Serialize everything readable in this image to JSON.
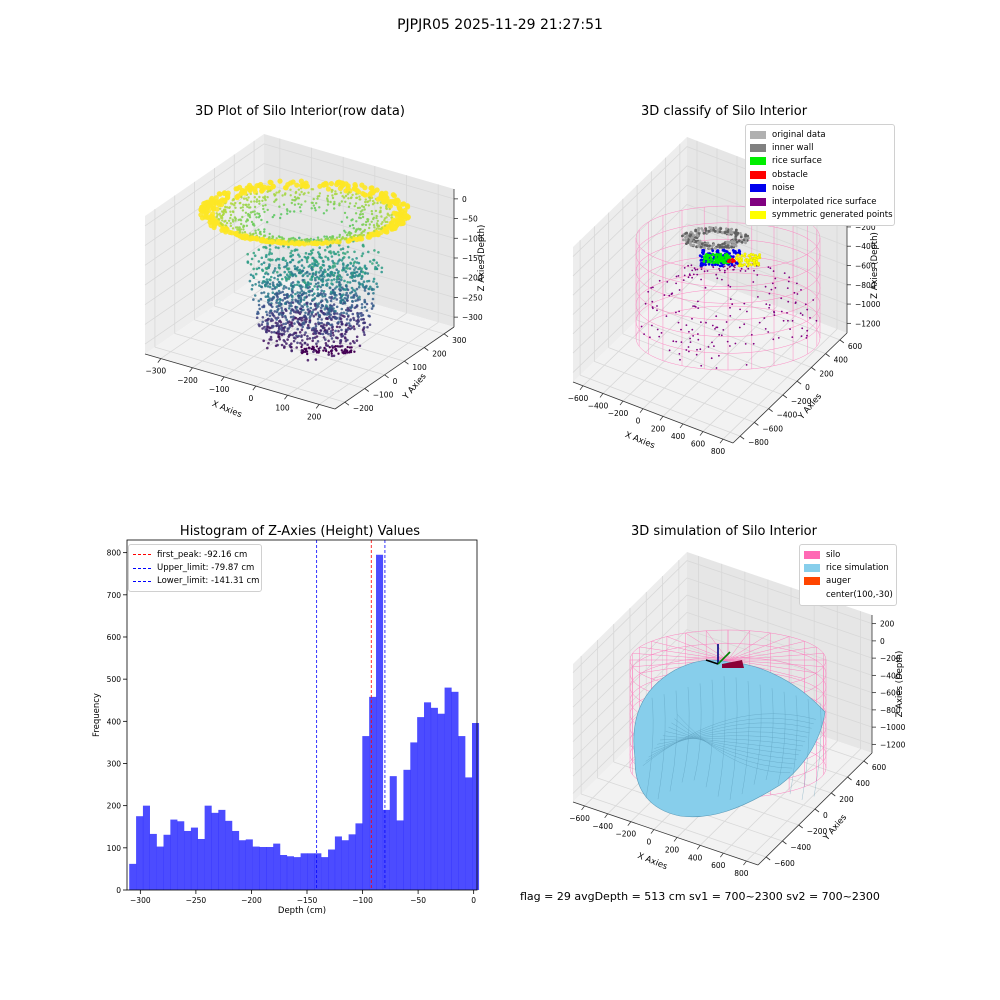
{
  "suptitle": "PJPJR05 2025-11-29 21:27:51",
  "footer": "flag = 29  avgDepth = 513 cm  sv1 = 700~2300  sv2 = 700~2300",
  "colors": {
    "viridis": [
      "#440154",
      "#3b528b",
      "#21918c",
      "#5ec962",
      "#fde725"
    ],
    "silo": "#ff69b4",
    "rice": "#87ceeb",
    "auger": "#ff4500",
    "hist_bar": "#0000ff",
    "first_peak": "#ff0000",
    "limit": "#0000ff"
  },
  "chart_data": [
    {
      "type": "scatter3d",
      "title": "3D Plot of Silo Interior(row data)",
      "xlabel": "X Axies",
      "ylabel": "Y Axies",
      "zlabel": "Z Axies (Depth)",
      "xticks": [
        "−300",
        "−200",
        "−100",
        "0",
        "100",
        "200"
      ],
      "yticks": [
        "−200",
        "−100",
        "0",
        "100",
        "200",
        "300"
      ],
      "zticks": [
        "0",
        "−50",
        "−100",
        "−150",
        "−200",
        "−250",
        "−300"
      ],
      "xlim": [
        -300,
        250
      ],
      "ylim": [
        -250,
        350
      ],
      "zlim": [
        -320,
        10
      ],
      "colormap": "viridis"
    },
    {
      "type": "scatter3d",
      "title": "3D classify of Silo Interior",
      "xlabel": "X Axies",
      "ylabel": "Y Axies",
      "zlabel": "Z Axies (Depth)",
      "xticks": [
        "−600",
        "−400",
        "−200",
        "0",
        "200",
        "400",
        "600",
        "800"
      ],
      "yticks": [
        "−800",
        "−600",
        "−400",
        "−200",
        "0",
        "200",
        "400",
        "600"
      ],
      "zticks": [
        "0",
        "−200",
        "−400",
        "−600",
        "−800",
        "−1000",
        "−1200"
      ],
      "legend": [
        {
          "label": "original data",
          "color": "#b0b0b0"
        },
        {
          "label": "inner wall",
          "color": "#808080"
        },
        {
          "label": "rice surface",
          "color": "#00ee00"
        },
        {
          "label": "obstacle",
          "color": "#ff0000"
        },
        {
          "label": "noise",
          "color": "#0000ee"
        },
        {
          "label": "interpolated rice surface",
          "color": "#800080"
        },
        {
          "label": "symmetric generated points",
          "color": "#ffff00"
        }
      ]
    },
    {
      "type": "bar",
      "title": "Histogram of Z-Axies (Height) Values",
      "xlabel": "Depth (cm)",
      "ylabel": "Frequency",
      "xlim": [
        -312,
        3
      ],
      "ylim": [
        0,
        830
      ],
      "xticks": [
        -300,
        -250,
        -200,
        -150,
        -100,
        -50,
        0
      ],
      "yticks": [
        0,
        100,
        200,
        300,
        400,
        500,
        600,
        700,
        800
      ],
      "bin_start": -310,
      "bin_width": 6.17,
      "values": [
        62,
        175,
        200,
        133,
        103,
        131,
        167,
        163,
        140,
        148,
        121,
        200,
        183,
        190,
        164,
        140,
        118,
        120,
        103,
        102,
        102,
        110,
        83,
        80,
        78,
        87,
        87,
        87,
        78,
        96,
        127,
        118,
        132,
        158,
        365,
        458,
        795,
        190,
        270,
        165,
        285,
        350,
        410,
        445,
        432,
        418,
        480,
        470,
        365,
        267,
        396
      ],
      "vlines": [
        {
          "label": "first_peak: -92.16 cm",
          "x": -92.16,
          "color": "#ff0000"
        },
        {
          "label": "Upper_limit: -79.87 cm",
          "x": -79.87,
          "color": "#0000ff"
        },
        {
          "label": "Lower_limit: -141.31 cm",
          "x": -141.31,
          "color": "#0000ff"
        }
      ]
    },
    {
      "type": "surface3d",
      "title": "3D simulation of Silo Interior",
      "xlabel": "X Axies",
      "ylabel": "Y Axies",
      "zlabel": "Z Axies (Depth)",
      "xticks": [
        "−600",
        "−400",
        "−200",
        "0",
        "200",
        "400",
        "600",
        "800"
      ],
      "yticks": [
        "−600",
        "−400",
        "−200",
        "0",
        "200",
        "400",
        "600"
      ],
      "zticks": [
        "200",
        "0",
        "−200",
        "−400",
        "−600",
        "−800",
        "−1000",
        "−1200"
      ],
      "legend": [
        {
          "label": "silo",
          "color": "#ff69b4"
        },
        {
          "label": "rice simulation",
          "color": "#87ceeb"
        },
        {
          "label": "auger",
          "color": "#ff4500"
        },
        {
          "label": "center(100,-30)",
          "color": ""
        }
      ]
    }
  ]
}
